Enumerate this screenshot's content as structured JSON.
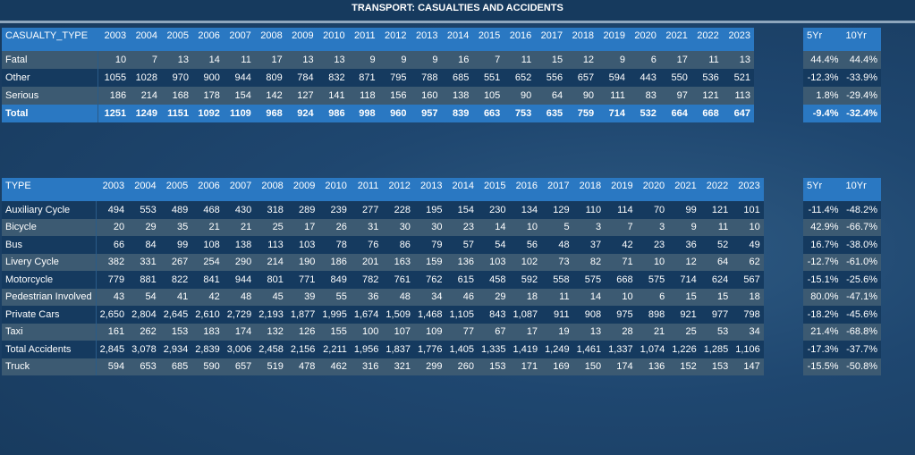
{
  "title": "TRANSPORT: CASUALTIES AND ACCIDENTS",
  "years": [
    "2003",
    "2004",
    "2005",
    "2006",
    "2007",
    "2008",
    "2009",
    "2010",
    "2011",
    "2012",
    "2013",
    "2014",
    "2015",
    "2016",
    "2017",
    "2018",
    "2019",
    "2020",
    "2021",
    "2022",
    "2023"
  ],
  "pct_headers": [
    "5Yr",
    "10Yr"
  ],
  "casualties": {
    "type_header": "CASUALTY_TYPE",
    "rows": [
      {
        "label": "Fatal",
        "values": [
          "10",
          "7",
          "13",
          "14",
          "11",
          "17",
          "13",
          "13",
          "9",
          "9",
          "9",
          "16",
          "7",
          "11",
          "15",
          "12",
          "9",
          "6",
          "17",
          "11",
          "13"
        ],
        "pct": [
          "44.4%",
          "44.4%"
        ]
      },
      {
        "label": "Other",
        "values": [
          "1055",
          "1028",
          "970",
          "900",
          "944",
          "809",
          "784",
          "832",
          "871",
          "795",
          "788",
          "685",
          "551",
          "652",
          "556",
          "657",
          "594",
          "443",
          "550",
          "536",
          "521"
        ],
        "pct": [
          "-12.3%",
          "-33.9%"
        ]
      },
      {
        "label": "Serious",
        "values": [
          "186",
          "214",
          "168",
          "178",
          "154",
          "142",
          "127",
          "141",
          "118",
          "156",
          "160",
          "138",
          "105",
          "90",
          "64",
          "90",
          "111",
          "83",
          "97",
          "121",
          "113"
        ],
        "pct": [
          "1.8%",
          "-29.4%"
        ]
      },
      {
        "label": "Total",
        "values": [
          "1251",
          "1249",
          "1151",
          "1092",
          "1109",
          "968",
          "924",
          "986",
          "998",
          "960",
          "957",
          "839",
          "663",
          "753",
          "635",
          "759",
          "714",
          "532",
          "664",
          "668",
          "647"
        ],
        "pct": [
          "-9.4%",
          "-32.4%"
        ]
      }
    ]
  },
  "accidents": {
    "type_header": "TYPE",
    "rows": [
      {
        "label": "Auxiliary Cycle",
        "values": [
          "494",
          "553",
          "489",
          "468",
          "430",
          "318",
          "289",
          "239",
          "277",
          "228",
          "195",
          "154",
          "230",
          "134",
          "129",
          "110",
          "114",
          "70",
          "99",
          "121",
          "101"
        ],
        "pct": [
          "-11.4%",
          "-48.2%"
        ]
      },
      {
        "label": "Bicycle",
        "values": [
          "20",
          "29",
          "35",
          "21",
          "21",
          "25",
          "17",
          "26",
          "31",
          "30",
          "30",
          "23",
          "14",
          "10",
          "5",
          "3",
          "7",
          "3",
          "9",
          "11",
          "10"
        ],
        "pct": [
          "42.9%",
          "-66.7%"
        ]
      },
      {
        "label": "Bus",
        "values": [
          "66",
          "84",
          "99",
          "108",
          "138",
          "113",
          "103",
          "78",
          "76",
          "86",
          "79",
          "57",
          "54",
          "56",
          "48",
          "37",
          "42",
          "23",
          "36",
          "52",
          "49"
        ],
        "pct": [
          "16.7%",
          "-38.0%"
        ]
      },
      {
        "label": "Livery Cycle",
        "values": [
          "382",
          "331",
          "267",
          "254",
          "290",
          "214",
          "190",
          "186",
          "201",
          "163",
          "159",
          "136",
          "103",
          "102",
          "73",
          "82",
          "71",
          "10",
          "12",
          "64",
          "62"
        ],
        "pct": [
          "-12.7%",
          "-61.0%"
        ]
      },
      {
        "label": "Motorcycle",
        "values": [
          "779",
          "881",
          "822",
          "841",
          "944",
          "801",
          "771",
          "849",
          "782",
          "761",
          "762",
          "615",
          "458",
          "592",
          "558",
          "575",
          "668",
          "575",
          "714",
          "624",
          "567"
        ],
        "pct": [
          "-15.1%",
          "-25.6%"
        ]
      },
      {
        "label": "Pedestrian Involved",
        "values": [
          "43",
          "54",
          "41",
          "42",
          "48",
          "45",
          "39",
          "55",
          "36",
          "48",
          "34",
          "46",
          "29",
          "18",
          "11",
          "14",
          "10",
          "6",
          "15",
          "15",
          "18"
        ],
        "pct": [
          "80.0%",
          "-47.1%"
        ]
      },
      {
        "label": "Private Cars",
        "values": [
          "2,650",
          "2,804",
          "2,645",
          "2,610",
          "2,729",
          "2,193",
          "1,877",
          "1,995",
          "1,674",
          "1,509",
          "1,468",
          "1,105",
          "843",
          "1,087",
          "911",
          "908",
          "975",
          "898",
          "921",
          "977",
          "798"
        ],
        "pct": [
          "-18.2%",
          "-45.6%"
        ]
      },
      {
        "label": "Taxi",
        "values": [
          "161",
          "262",
          "153",
          "183",
          "174",
          "132",
          "126",
          "155",
          "100",
          "107",
          "109",
          "77",
          "67",
          "17",
          "19",
          "13",
          "28",
          "21",
          "25",
          "53",
          "34"
        ],
        "pct": [
          "21.4%",
          "-68.8%"
        ]
      },
      {
        "label": "Total Accidents",
        "values": [
          "2,845",
          "3,078",
          "2,934",
          "2,839",
          "3,006",
          "2,458",
          "2,156",
          "2,211",
          "1,956",
          "1,837",
          "1,776",
          "1,405",
          "1,335",
          "1,419",
          "1,249",
          "1,461",
          "1,337",
          "1,074",
          "1,226",
          "1,285",
          "1,106"
        ],
        "pct": [
          "-17.3%",
          "-37.7%"
        ]
      },
      {
        "label": "Truck",
        "values": [
          "594",
          "653",
          "685",
          "590",
          "657",
          "519",
          "478",
          "462",
          "316",
          "321",
          "299",
          "260",
          "153",
          "171",
          "169",
          "150",
          "174",
          "136",
          "152",
          "153",
          "147"
        ],
        "pct": [
          "-15.5%",
          "-50.8%"
        ]
      }
    ]
  }
}
